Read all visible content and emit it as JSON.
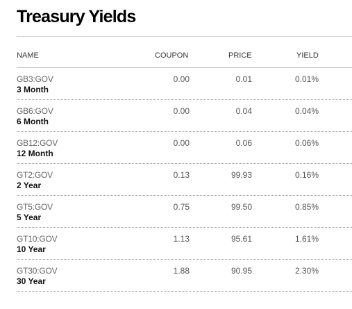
{
  "title": "Treasury Yields",
  "columns": {
    "name": "NAME",
    "coupon": "COUPON",
    "price": "PRICE",
    "yield": "YIELD"
  },
  "rows": [
    {
      "ticker": "GB3:GOV",
      "name": "3 Month",
      "coupon": "0.00",
      "price": "0.01",
      "yield": "0.01%"
    },
    {
      "ticker": "GB6:GOV",
      "name": "6 Month",
      "coupon": "0.00",
      "price": "0.04",
      "yield": "0.04%"
    },
    {
      "ticker": "GB12:GOV",
      "name": "12 Month",
      "coupon": "0.00",
      "price": "0.06",
      "yield": "0.06%"
    },
    {
      "ticker": "GT2:GOV",
      "name": "2 Year",
      "coupon": "0.13",
      "price": "99.93",
      "yield": "0.16%"
    },
    {
      "ticker": "GT5:GOV",
      "name": "5 Year",
      "coupon": "0.75",
      "price": "99.50",
      "yield": "0.85%"
    },
    {
      "ticker": "GT10:GOV",
      "name": "10 Year",
      "coupon": "1.13",
      "price": "95.61",
      "yield": "1.61%"
    },
    {
      "ticker": "GT30:GOV",
      "name": "30 Year",
      "coupon": "1.88",
      "price": "90.95",
      "yield": "2.30%"
    }
  ]
}
